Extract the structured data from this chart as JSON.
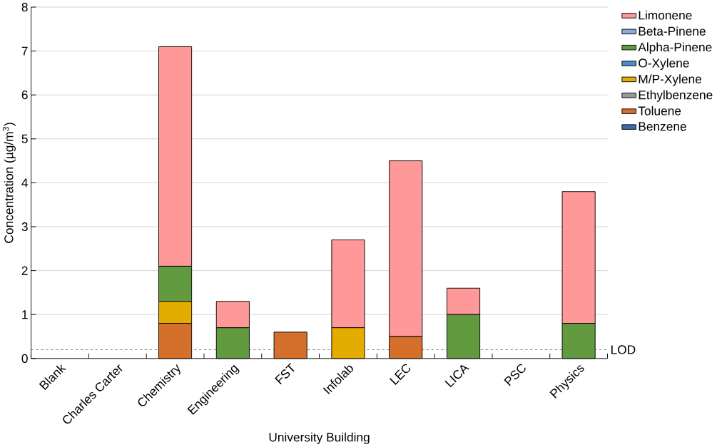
{
  "chart_data": {
    "type": "bar",
    "stacked": true,
    "xlabel": "University Building",
    "ylabel": "Concentration (µg/m$^{3}$)",
    "categories": [
      "Blank",
      "Charles Carter",
      "Chemistry",
      "Engineering",
      "FST",
      "Infolab",
      "LEC",
      "LICA",
      "PSC",
      "Physics"
    ],
    "series": [
      {
        "name": "Benzene",
        "color": "#4068b0",
        "values": [
          0,
          0,
          0,
          0,
          0,
          0,
          0,
          0,
          0,
          0
        ]
      },
      {
        "name": "Toluene",
        "color": "#d4702c",
        "values": [
          0,
          0,
          0.8,
          0,
          0.6,
          0,
          0.5,
          0,
          0,
          0
        ]
      },
      {
        "name": "Ethylbenzene",
        "color": "#999999",
        "values": [
          0,
          0,
          0,
          0,
          0,
          0,
          0,
          0,
          0,
          0
        ]
      },
      {
        "name": "M/P-Xylene",
        "color": "#e5ac00",
        "values": [
          0,
          0,
          0.5,
          0,
          0,
          0.7,
          0,
          0,
          0,
          0
        ]
      },
      {
        "name": "O-Xylene",
        "color": "#4a8cc4",
        "values": [
          0,
          0,
          0,
          0,
          0,
          0,
          0,
          0,
          0,
          0
        ]
      },
      {
        "name": "Alpha-Pinene",
        "color": "#629a40",
        "values": [
          0,
          0,
          0.8,
          0.7,
          0,
          0,
          0,
          1.0,
          0,
          0.8
        ]
      },
      {
        "name": "Beta-Pinene",
        "color": "#91a8d8",
        "values": [
          0,
          0,
          0,
          0,
          0,
          0,
          0,
          0,
          0,
          0
        ]
      },
      {
        "name": "Limonene",
        "color": "#ff9999",
        "values": [
          0,
          0,
          5.0,
          0.6,
          0,
          2.0,
          4.0,
          0.6,
          0,
          3.0
        ]
      }
    ],
    "ylim": [
      0,
      8
    ],
    "yticks": [
      0,
      1,
      2,
      3,
      4,
      5,
      6,
      7,
      8
    ],
    "grid": "y",
    "legend": "right",
    "ref_lines": [
      {
        "axis": "y",
        "value": 0.2,
        "label": "LOD",
        "line_style": "dashed",
        "color": "#000000"
      }
    ]
  }
}
